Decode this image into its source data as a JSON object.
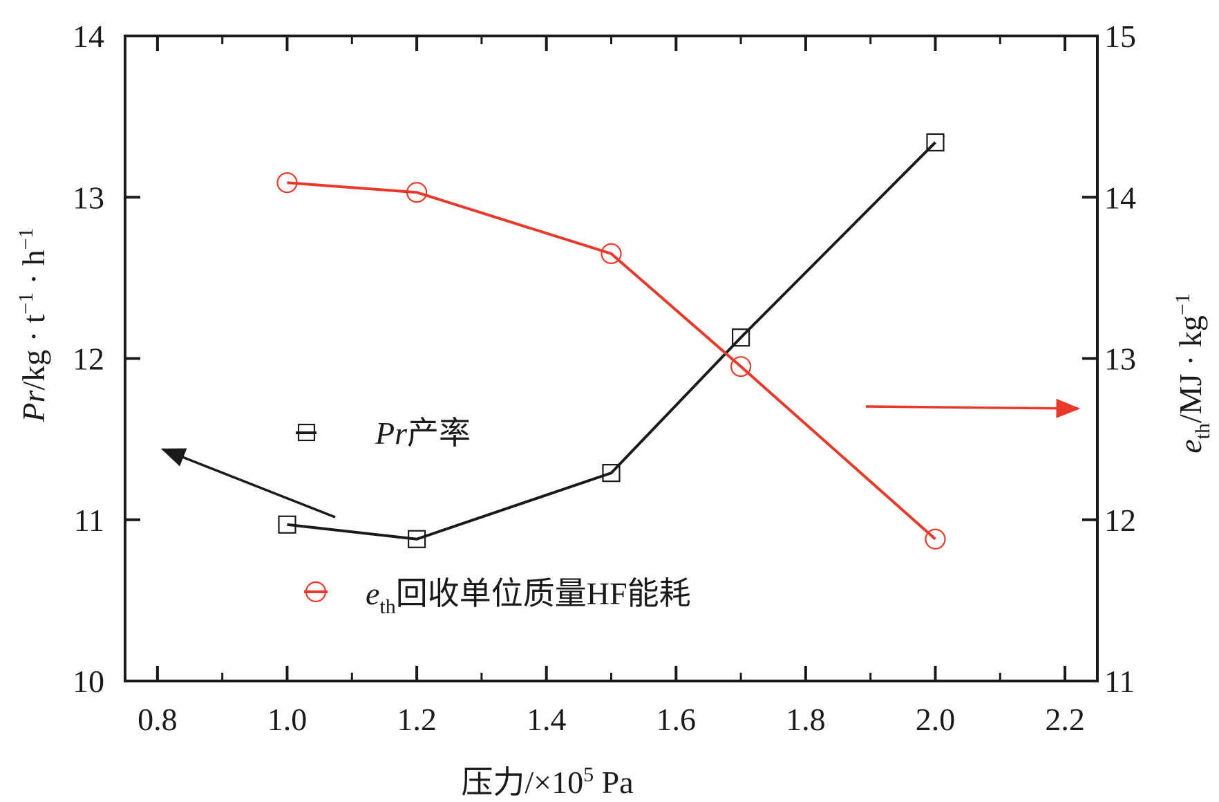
{
  "chart_data": {
    "type": "line",
    "x": [
      1.0,
      1.2,
      1.5,
      1.7,
      2.0
    ],
    "xlim": [
      0.75,
      2.25
    ],
    "xticks": [
      "0.8",
      "1.0",
      "1.2",
      "1.4",
      "1.6",
      "1.8",
      "2.0",
      "2.2"
    ],
    "xlabel": {
      "pre": "压力/×10",
      "sup": "5",
      "post": " Pa"
    },
    "left_axis": {
      "ylim": [
        10,
        14
      ],
      "ticks": [
        "10",
        "11",
        "12",
        "13",
        "14"
      ],
      "label": {
        "italic": "Pr",
        "text": "/kg · t",
        "sup1": "−1",
        "mid": " · h",
        "sup2": "−1"
      }
    },
    "right_axis": {
      "ylim": [
        11,
        15
      ],
      "ticks": [
        "11",
        "12",
        "13",
        "14",
        "15"
      ],
      "label": {
        "italic": "e",
        "sub": "th",
        "text": "/MJ · kg",
        "sup": "−1"
      }
    },
    "series": [
      {
        "name": "Pr产率",
        "name_italic": "Pr",
        "name_text": "产率",
        "axis": "left",
        "marker": "square",
        "color": "#1a1a1a",
        "values": [
          10.97,
          10.88,
          11.29,
          12.13,
          13.34
        ]
      },
      {
        "name": "eth回收单位质量HF能耗",
        "name_italic": "e",
        "name_sub": "th",
        "name_text": "回收单位质量HF能耗",
        "axis": "right",
        "marker": "circle",
        "color": "#e8392b",
        "values": [
          14.09,
          14.03,
          13.65,
          12.95,
          11.88
        ]
      }
    ],
    "legend_position": "center-left",
    "grid": false
  }
}
